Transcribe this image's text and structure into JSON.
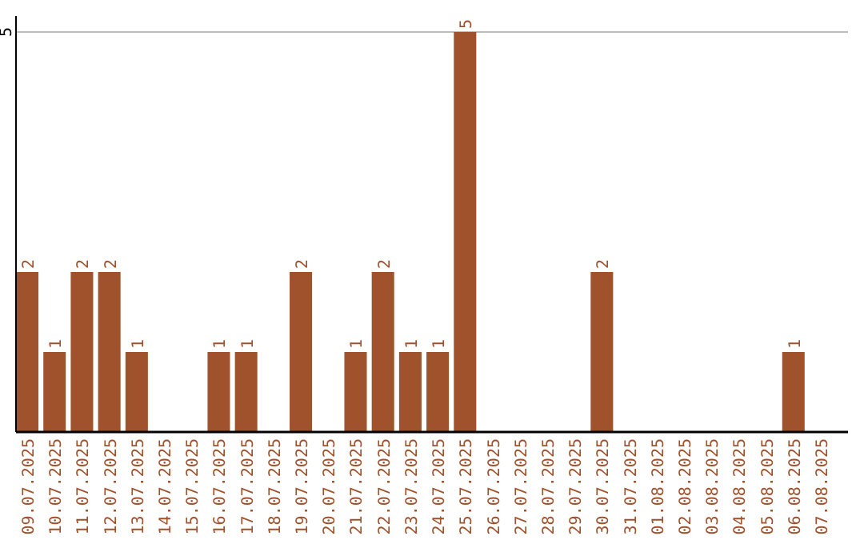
{
  "chart_data": {
    "type": "bar",
    "categories": [
      "09.07.2025",
      "10.07.2025",
      "11.07.2025",
      "12.07.2025",
      "13.07.2025",
      "14.07.2025",
      "15.07.2025",
      "16.07.2025",
      "17.07.2025",
      "18.07.2025",
      "19.07.2025",
      "20.07.2025",
      "21.07.2025",
      "22.07.2025",
      "23.07.2025",
      "24.07.2025",
      "25.07.2025",
      "26.07.2025",
      "27.07.2025",
      "28.07.2025",
      "29.07.2025",
      "30.07.2025",
      "31.07.2025",
      "01.08.2025",
      "02.08.2025",
      "03.08.2025",
      "04.08.2025",
      "05.08.2025",
      "06.08.2025",
      "07.08.2025"
    ],
    "values": [
      2,
      1,
      2,
      2,
      1,
      0,
      0,
      1,
      1,
      0,
      2,
      0,
      1,
      2,
      1,
      1,
      5,
      0,
      0,
      0,
      0,
      2,
      0,
      0,
      0,
      0,
      0,
      0,
      1,
      0
    ],
    "value_labels": [
      "2",
      "1",
      "2",
      "2",
      "1",
      null,
      null,
      "1",
      "1",
      null,
      "2",
      null,
      "1",
      "2",
      "1",
      "1",
      "5",
      null,
      null,
      null,
      null,
      "2",
      null,
      null,
      null,
      null,
      null,
      null,
      "1",
      null
    ],
    "color": "#a0522d",
    "ylim": [
      0,
      5.2
    ],
    "yticks": [
      5
    ],
    "grid": "y"
  }
}
